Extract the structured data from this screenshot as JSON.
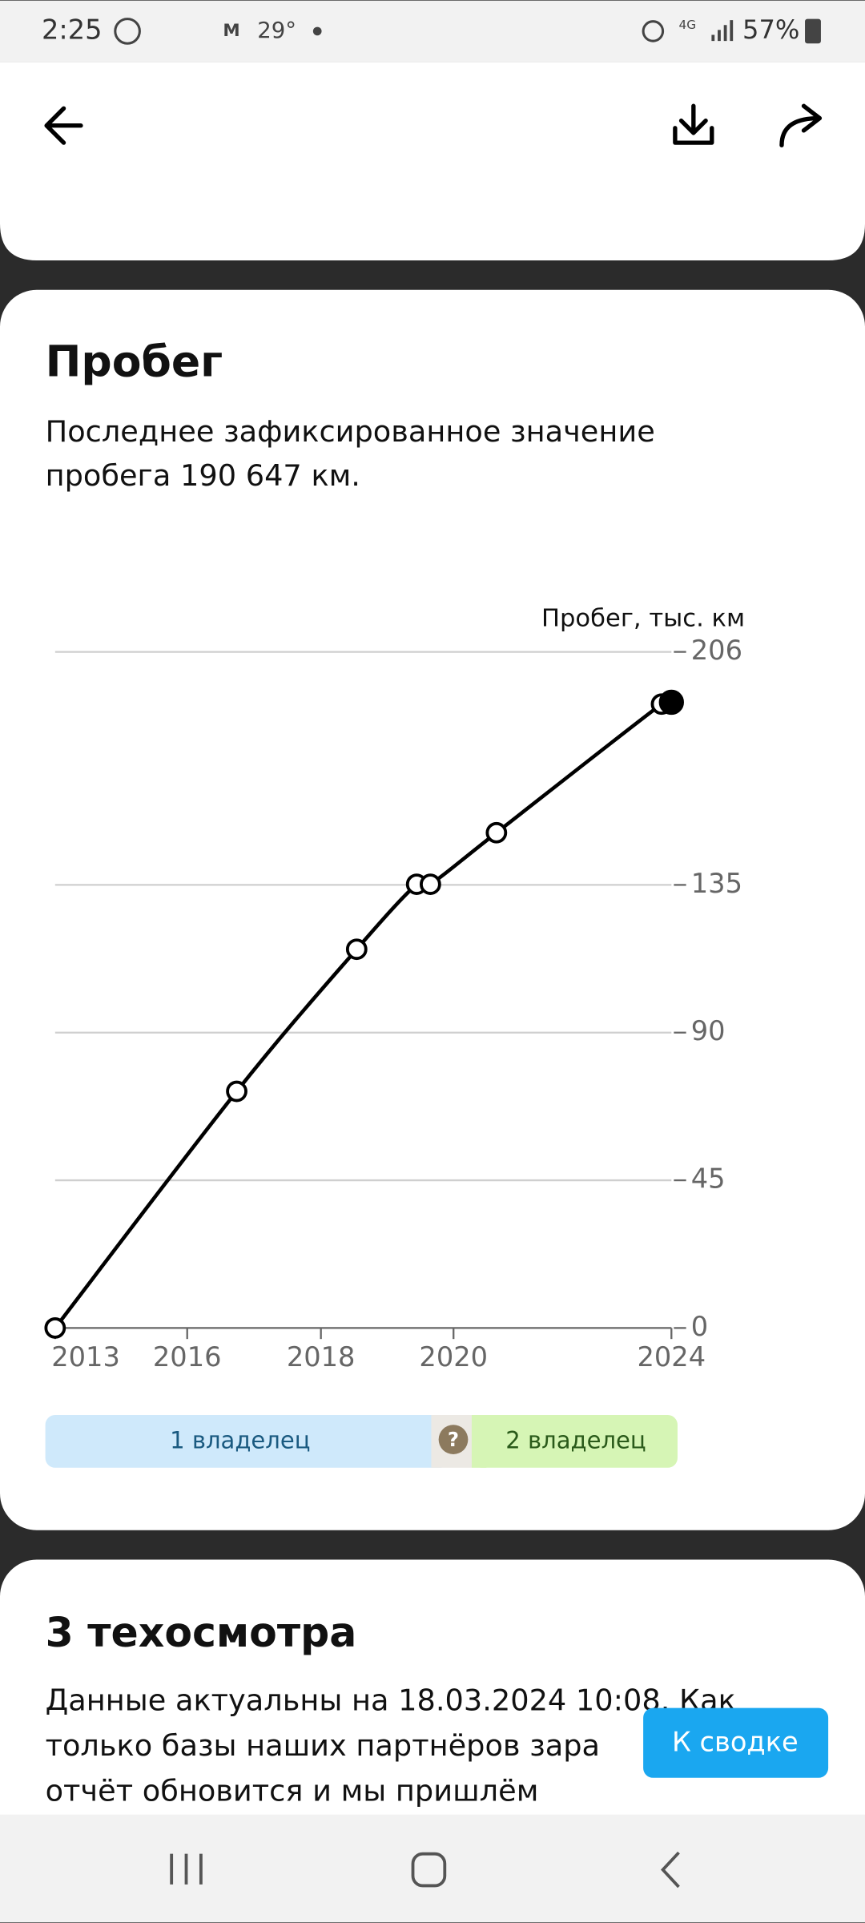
{
  "status_bar": {
    "time": "2:25",
    "temperature": "29°",
    "network": "4G",
    "battery": "57%"
  },
  "mileage_card": {
    "title": "Пробег",
    "description": [
      "Последнее зафиксированное значение",
      "пробега 190 647 км."
    ],
    "owners": {
      "first": "1 владелец",
      "unknown": "?",
      "second": "2 владелец"
    }
  },
  "chart_data": {
    "type": "line",
    "y_label": "Пробег, тыс. км",
    "color": "#000000",
    "grid": true,
    "x": [
      2013.0,
      2016.3,
      2018.48,
      2019.57,
      2019.82,
      2021.02,
      2024.02,
      2024.2
    ],
    "values": [
      0,
      72.1,
      115.4,
      135.2,
      135.2,
      150.9,
      190.1,
      190.647
    ],
    "xlim": [
      2013.0,
      2024.2
    ],
    "xticks": [
      {
        "value": 2013.0,
        "label": "2013"
      },
      {
        "value": 2015.4,
        "label": "2016"
      },
      {
        "value": 2017.83,
        "label": "2018"
      },
      {
        "value": 2020.24,
        "label": "2020"
      },
      {
        "value": 2024.2,
        "label": "2024"
      }
    ],
    "ylim": [
      0,
      206
    ],
    "yticks": [
      0,
      45,
      90,
      135,
      206
    ]
  },
  "inspection_card": {
    "title": "3 техосмотра",
    "description": [
      "Данные актуальны на 18.03.2024 10:08. Как",
      "только базы наших партнёров зара",
      "отчёт обновится и мы пришлём"
    ]
  },
  "summary_button": "К сводке"
}
